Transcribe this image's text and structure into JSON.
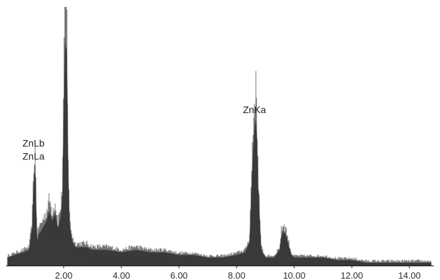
{
  "chart_data": {
    "type": "area",
    "title": "",
    "xlabel": "",
    "ylabel": "",
    "xlim": [
      0.05,
      14.75
    ],
    "ylim": [
      0,
      100
    ],
    "grid": false,
    "legend": "none",
    "fill_color": "#3a3a3a",
    "baseline_color": "#222222",
    "x_ticks": [
      {
        "value": 2.0,
        "label": "2.00"
      },
      {
        "value": 4.0,
        "label": "4.00"
      },
      {
        "value": 6.0,
        "label": "6.00"
      },
      {
        "value": 8.0,
        "label": "8.00"
      },
      {
        "value": 10.0,
        "label": "10.00"
      },
      {
        "value": 12.0,
        "label": "12.00"
      },
      {
        "value": 14.0,
        "label": "14.00"
      }
    ],
    "series": [
      {
        "x": [
          0.05,
          0.3,
          0.6,
          0.8,
          0.9,
          0.95,
          1.0,
          1.02,
          1.05,
          1.08,
          1.12,
          1.2,
          1.3,
          1.4,
          1.5,
          1.6,
          1.7,
          1.8,
          1.9,
          1.95,
          2.0,
          2.05,
          2.08,
          2.1,
          2.12,
          2.15,
          2.2,
          2.25,
          2.3,
          2.4,
          2.5,
          2.6,
          2.8,
          3.0,
          3.5,
          4.0,
          4.5,
          5.0,
          5.5,
          6.0,
          6.5,
          7.0,
          7.5,
          8.0,
          8.3,
          8.45,
          8.55,
          8.62,
          8.66,
          8.7,
          8.75,
          8.85,
          9.0,
          9.3,
          9.5,
          9.55,
          9.62,
          9.7,
          9.8,
          9.9,
          10.0,
          10.5,
          11.0,
          11.5,
          12.0,
          12.5,
          13.0,
          13.5,
          14.0,
          14.5,
          14.75
        ],
        "y": [
          3,
          4,
          5,
          6,
          14,
          28,
          39,
          33,
          18,
          9,
          12,
          13,
          15,
          17,
          21,
          17,
          20,
          14,
          19,
          25,
          58,
          86,
          82,
          84,
          68,
          38,
          16,
          12,
          9,
          7,
          7,
          7,
          7,
          6,
          6,
          5,
          6,
          5,
          5,
          4,
          4,
          3,
          3,
          4,
          5,
          9,
          38,
          52,
          56,
          51,
          30,
          6,
          3,
          3,
          6,
          11,
          13,
          12,
          8,
          4,
          3,
          3,
          3,
          2,
          2,
          1,
          1,
          1,
          1,
          1,
          1
        ]
      }
    ],
    "annotations": [
      {
        "text": "ZnLb",
        "x": 0.95,
        "y": 46
      },
      {
        "text": "ZnLa",
        "x": 0.95,
        "y": 41
      },
      {
        "text": "ZnKa",
        "x": 8.62,
        "y": 59
      }
    ]
  }
}
